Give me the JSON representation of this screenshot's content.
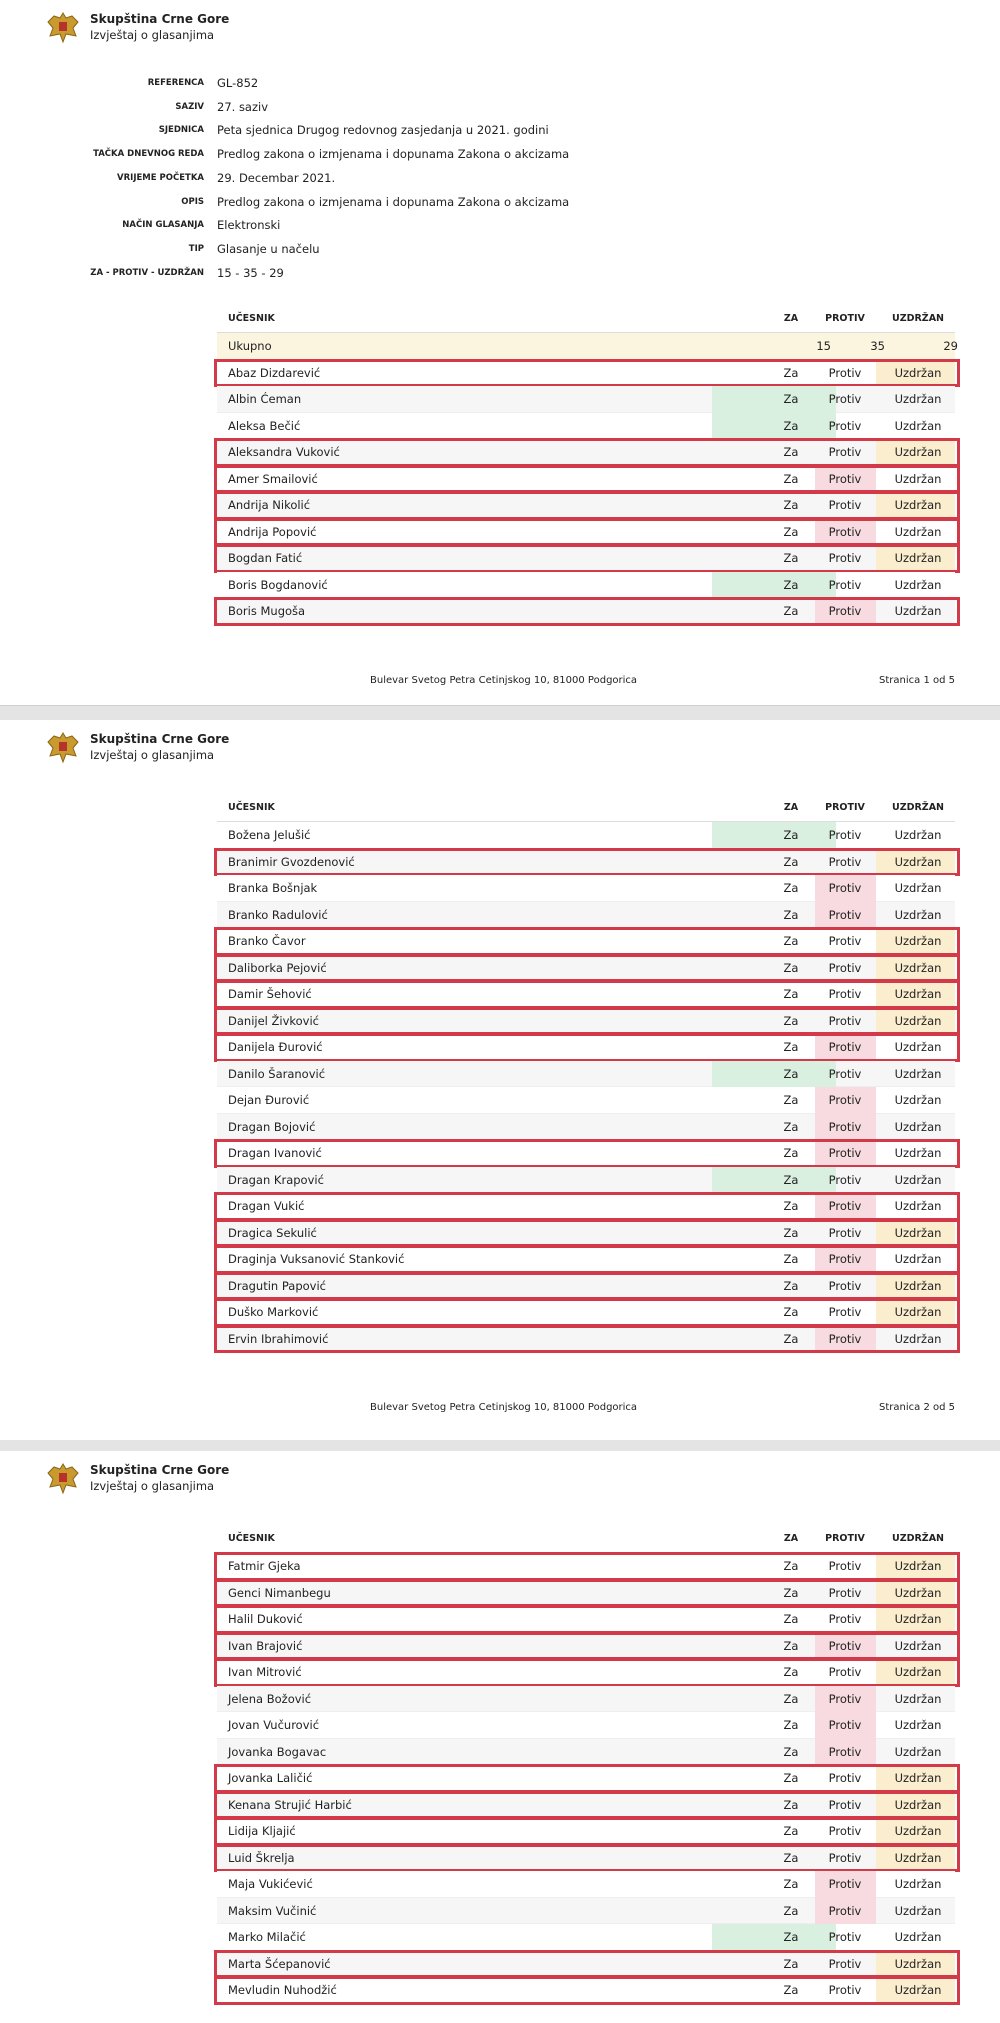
{
  "header": {
    "title": "Skupština Crne Gore",
    "subtitle": "Izvještaj o glasanjima"
  },
  "meta": [
    {
      "label": "REFERENCA",
      "value": "GL-852"
    },
    {
      "label": "SAZIV",
      "value": "27. saziv"
    },
    {
      "label": "SJEDNICA",
      "value": "Peta sjednica Drugog redovnog zasjedanja u 2021. godini"
    },
    {
      "label": "TAČKA DNEVNOG REDA",
      "value": "Predlog zakona o izmjenama i dopunama Zakona o akcizama"
    },
    {
      "label": "VRIJEME POČETKA",
      "value": "29. Decembar 2021."
    },
    {
      "label": "OPIS",
      "value": "Predlog zakona o izmjenama i dopunama Zakona o akcizama"
    },
    {
      "label": "NAČIN GLASANJA",
      "value": "Elektronski"
    },
    {
      "label": "TIP",
      "value": "Glasanje u načelu"
    },
    {
      "label": "ZA - PROTIV - UZDRŽAN",
      "value": "15 - 35 - 29"
    }
  ],
  "columns": [
    "UČESNIK",
    "ZA",
    "PROTIV",
    "UZDRŽAN"
  ],
  "choices": [
    "Za",
    "Protiv",
    "Uzdržan"
  ],
  "total": {
    "name": "Ukupno",
    "values": [
      15,
      35,
      29
    ]
  },
  "footer": "Bulevar Svetog Petra Cetinjskog 10, 81000 Podgorica",
  "pages": [
    {
      "page_label": "Stranica 1 od 5",
      "rows": [
        {
          "name": "Abaz Dizdarević",
          "vote": 2,
          "marked": true
        },
        {
          "name": "Albin Ćeman",
          "vote": 0,
          "marked": false
        },
        {
          "name": "Aleksa Bečić",
          "vote": 0,
          "marked": false
        },
        {
          "name": "Aleksandra Vuković",
          "vote": 2,
          "marked": true
        },
        {
          "name": "Amer Smailović",
          "vote": 1,
          "marked": true
        },
        {
          "name": "Andrija Nikolić",
          "vote": 2,
          "marked": true
        },
        {
          "name": "Andrija Popović",
          "vote": 1,
          "marked": true
        },
        {
          "name": "Bogdan Fatić",
          "vote": 2,
          "marked": true
        },
        {
          "name": "Boris Bogdanović",
          "vote": 0,
          "marked": false
        },
        {
          "name": "Boris Mugoša",
          "vote": 1,
          "marked": true
        }
      ]
    },
    {
      "page_label": "Stranica 2 od 5",
      "rows": [
        {
          "name": "Božena Jelušić",
          "vote": 0,
          "marked": false
        },
        {
          "name": "Branimir Gvozdenović",
          "vote": 2,
          "marked": true
        },
        {
          "name": "Branka Bošnjak",
          "vote": 1,
          "marked": false
        },
        {
          "name": "Branko Radulović",
          "vote": 1,
          "marked": false
        },
        {
          "name": "Branko Čavor",
          "vote": 2,
          "marked": true
        },
        {
          "name": "Daliborka Pejović",
          "vote": 2,
          "marked": true
        },
        {
          "name": "Damir Šehović",
          "vote": 2,
          "marked": true
        },
        {
          "name": "Danijel Živković",
          "vote": 2,
          "marked": true
        },
        {
          "name": "Danijela Đurović",
          "vote": 1,
          "marked": true
        },
        {
          "name": "Danilo Šaranović",
          "vote": 0,
          "marked": false
        },
        {
          "name": "Dejan Đurović",
          "vote": 1,
          "marked": false
        },
        {
          "name": "Dragan Bojović",
          "vote": 1,
          "marked": false
        },
        {
          "name": "Dragan Ivanović",
          "vote": 1,
          "marked": true
        },
        {
          "name": "Dragan Krapović",
          "vote": 0,
          "marked": false
        },
        {
          "name": "Dragan Vukić",
          "vote": 1,
          "marked": true
        },
        {
          "name": "Dragica Sekulić",
          "vote": 2,
          "marked": true
        },
        {
          "name": "Draginja Vuksanović Stanković",
          "vote": 1,
          "marked": true
        },
        {
          "name": "Dragutin Papović",
          "vote": 2,
          "marked": true
        },
        {
          "name": "Duško Marković",
          "vote": 2,
          "marked": true
        },
        {
          "name": "Ervin Ibrahimović",
          "vote": 1,
          "marked": true
        }
      ]
    },
    {
      "rows": [
        {
          "name": "Fatmir Gjeka",
          "vote": 2,
          "marked": true
        },
        {
          "name": "Genci Nimanbegu",
          "vote": 2,
          "marked": true
        },
        {
          "name": "Halil Duković",
          "vote": 2,
          "marked": true
        },
        {
          "name": "Ivan Brajović",
          "vote": 1,
          "marked": true
        },
        {
          "name": "Ivan Mitrović",
          "vote": 2,
          "marked": true
        },
        {
          "name": "Jelena Božović",
          "vote": 1,
          "marked": false
        },
        {
          "name": "Jovan Vučurović",
          "vote": 1,
          "marked": false
        },
        {
          "name": "Jovanka Bogavac",
          "vote": 1,
          "marked": false
        },
        {
          "name": "Jovanka Laličić",
          "vote": 2,
          "marked": true
        },
        {
          "name": "Kenana Strujić Harbić",
          "vote": 2,
          "marked": true
        },
        {
          "name": "Lidija Kljajić",
          "vote": 2,
          "marked": true
        },
        {
          "name": "Luid Škrelja",
          "vote": 2,
          "marked": true
        },
        {
          "name": "Maja Vukićević",
          "vote": 1,
          "marked": false
        },
        {
          "name": "Maksim Vučinić",
          "vote": 1,
          "marked": false
        },
        {
          "name": "Marko Milačić",
          "vote": 0,
          "marked": false
        },
        {
          "name": "Marta Šćepanović",
          "vote": 2,
          "marked": true
        },
        {
          "name": "Mevludin Nuhodžić",
          "vote": 2,
          "marked": true
        }
      ]
    }
  ]
}
